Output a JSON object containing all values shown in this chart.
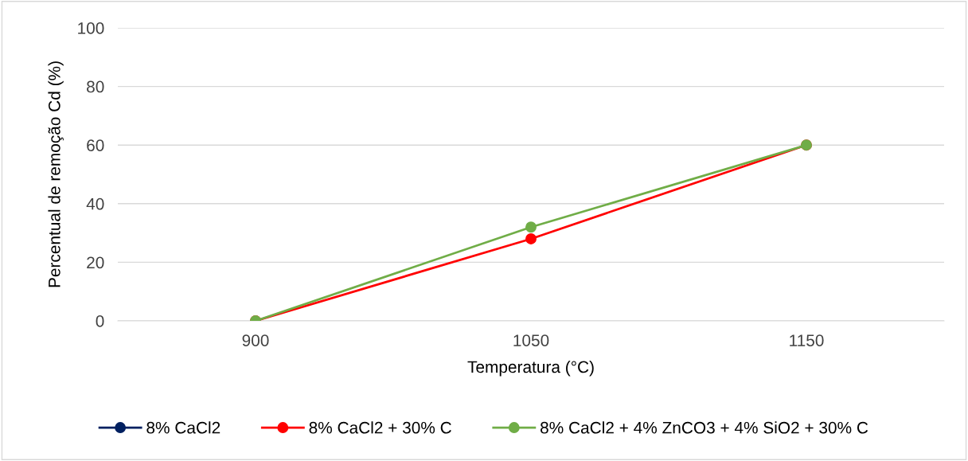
{
  "chart_data": {
    "type": "line",
    "xlabel": "Temperatura (°C)",
    "ylabel": "Percentual de remoção Cd (%)",
    "categories": [
      "900",
      "1050",
      "1150"
    ],
    "series": [
      {
        "name": "8% CaCl2",
        "color": "#002060",
        "values": [
          null,
          null,
          null
        ]
      },
      {
        "name": "8% CaCl2 + 30% C",
        "color": "#ff0000",
        "values": [
          0,
          28,
          60
        ]
      },
      {
        "name": "8% CaCl2 + 4% ZnCO3 + 4% SiO2 + 30% C",
        "color": "#70ad47",
        "values": [
          0,
          32,
          60
        ]
      }
    ],
    "ylim": [
      0,
      100
    ],
    "yticks": [
      0,
      20,
      40,
      60,
      80,
      100
    ],
    "grid": "y",
    "legend": "bottom",
    "marker": "circle",
    "line_style": "solid"
  }
}
